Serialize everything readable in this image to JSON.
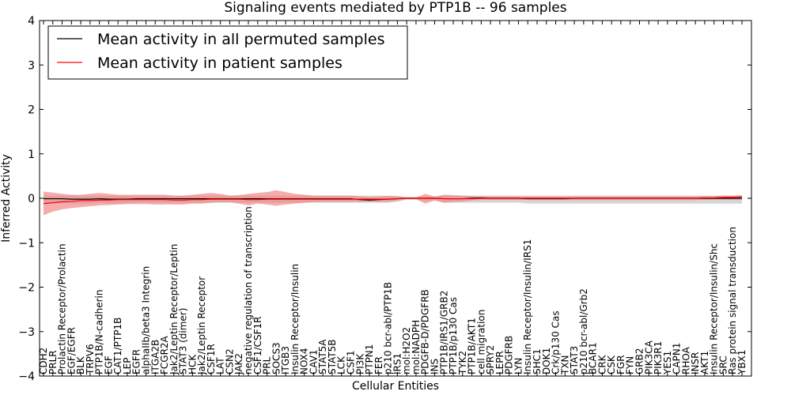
{
  "chart_data": {
    "type": "line",
    "title": "Signaling events mediated by PTP1B -- 96 samples",
    "xlabel": "Cellular Entities",
    "ylabel": "Inferred Activity",
    "ylim": [
      -4,
      4
    ],
    "yticks": [
      4,
      3,
      2,
      1,
      0,
      -1,
      -2,
      -3,
      -4
    ],
    "ytick_labels": [
      "4",
      "3",
      "2",
      "1",
      "0",
      "−1",
      "−2",
      "−3",
      "−4"
    ],
    "legend": {
      "placement": "top-left",
      "entries": [
        {
          "label": "Mean activity in all permuted samples",
          "color": "#000000"
        },
        {
          "label": "Mean activity in patient samples",
          "color": "#ff0000"
        }
      ]
    },
    "categories": [
      "CDH2",
      "PRLR",
      "Prolactin Receptor/Prolactin",
      "EGF/EGFR",
      "BLK",
      "TRPV6",
      "PTP1B/N-cadherin",
      "EGF",
      "CAT1/PTP1B",
      "LEP",
      "EGFR",
      "alphaIIb/beta3 Integrin",
      "ITGA2B",
      "FCGR2A",
      "Jak2/Leptin Receptor/Leptin",
      "STAT3 (dimer)",
      "HCK",
      "Jak2/Leptin Receptor",
      "CSF1R",
      "LAT",
      "CSN2",
      "JAK2",
      "negative regulation of transcription",
      "CSF1/CSF1R",
      "PRL",
      "SOCS3",
      "ITGB3",
      "Insulin Receptor/Insulin",
      "NOX4",
      "CAV1",
      "STAT5A",
      "STAT5B",
      "LCK",
      "CSF1",
      "PI3K",
      "PTPN1",
      "FER",
      "p210 bcr-abl/PTP1B",
      "IRS1",
      "mol:H2O2",
      "mol:NADPH",
      "PDGFB-D/PDGFRB",
      "INS",
      "PTP1B/IRS1/GRB2",
      "PTP1B/p130 Cas",
      "TYK2",
      "PTP1B/AKT1",
      "cell migration",
      "SPRY2",
      "LEPR",
      "PDGFRB",
      "LYN",
      "Insulin Receptor/Insulin/IRS1",
      "SHC1",
      "DOK1",
      "Crk/p130 Cas",
      "TXN",
      "STAT3",
      "p210 bcr-abl/Grb2",
      "BCAR1",
      "CRK",
      "CSK",
      "FGR",
      "FYN",
      "GRB2",
      "PIK3CA",
      "PIK3R1",
      "YES1",
      "CAPN1",
      "RHOA",
      "INSR",
      "AKT1",
      "Insulin Receptor/Insulin/Shc",
      "SRC",
      "Ras protein signal transduction",
      "YBX1"
    ],
    "series": [
      {
        "name": "Mean activity in all permuted samples",
        "color": "#000000",
        "values": [
          -0.01,
          -0.01,
          -0.01,
          -0.02,
          -0.02,
          -0.02,
          -0.01,
          -0.02,
          -0.02,
          -0.02,
          -0.01,
          -0.01,
          -0.01,
          -0.01,
          -0.01,
          -0.01,
          -0.01,
          -0.01,
          -0.01,
          -0.01,
          -0.01,
          -0.01,
          -0.01,
          -0.01,
          -0.01,
          -0.01,
          -0.01,
          -0.01,
          -0.01,
          -0.01,
          -0.01,
          -0.01,
          -0.01,
          -0.01,
          -0.03,
          -0.04,
          -0.03,
          -0.02,
          -0.01,
          0.0,
          0.0,
          0.0,
          0.0,
          -0.01,
          -0.01,
          -0.01,
          0.0,
          0.01,
          0.0,
          0.0,
          0.0,
          0.0,
          -0.01,
          -0.01,
          -0.01,
          -0.01,
          -0.01,
          0.0,
          0.0,
          0.0,
          0.0,
          0.0,
          0.0,
          0.0,
          0.0,
          0.0,
          0.0,
          0.0,
          0.0,
          0.0,
          0.0,
          0.0,
          0.0,
          0.0,
          0.0,
          0.0
        ],
        "band_low": [
          -0.1,
          -0.1,
          -0.1,
          -0.12,
          -0.12,
          -0.12,
          -0.1,
          -0.12,
          -0.12,
          -0.12,
          -0.1,
          -0.1,
          -0.1,
          -0.1,
          -0.1,
          -0.1,
          -0.1,
          -0.1,
          -0.1,
          -0.1,
          -0.1,
          -0.1,
          -0.1,
          -0.1,
          -0.1,
          -0.1,
          -0.1,
          -0.1,
          -0.1,
          -0.1,
          -0.1,
          -0.1,
          -0.1,
          -0.1,
          -0.1,
          -0.1,
          -0.1,
          -0.1,
          -0.08,
          -0.03,
          -0.03,
          -0.06,
          -0.05,
          -0.1,
          -0.1,
          -0.1,
          -0.1,
          -0.1,
          -0.1,
          -0.1,
          -0.1,
          -0.1,
          -0.12,
          -0.12,
          -0.12,
          -0.12,
          -0.12,
          -0.12,
          -0.12,
          -0.12,
          -0.12,
          -0.12,
          -0.12,
          -0.12,
          -0.12,
          -0.12,
          -0.12,
          -0.12,
          -0.12,
          -0.12,
          -0.12,
          -0.12,
          -0.12,
          -0.12,
          -0.12,
          -0.12
        ],
        "band_high": [
          0.06,
          0.06,
          0.06,
          0.06,
          0.06,
          0.06,
          0.06,
          0.06,
          0.06,
          0.06,
          0.06,
          0.06,
          0.06,
          0.06,
          0.06,
          0.06,
          0.06,
          0.06,
          0.06,
          0.06,
          0.06,
          0.06,
          0.06,
          0.06,
          0.06,
          0.06,
          0.06,
          0.06,
          0.06,
          0.06,
          0.06,
          0.06,
          0.06,
          0.06,
          0.06,
          0.06,
          0.06,
          0.06,
          0.05,
          0.03,
          0.03,
          0.04,
          0.04,
          0.06,
          0.06,
          0.06,
          0.06,
          0.06,
          0.06,
          0.06,
          0.06,
          0.06,
          0.06,
          0.06,
          0.06,
          0.06,
          0.06,
          0.06,
          0.06,
          0.06,
          0.06,
          0.06,
          0.06,
          0.06,
          0.06,
          0.06,
          0.06,
          0.06,
          0.06,
          0.06,
          0.06,
          0.06,
          0.06,
          0.06,
          0.06,
          0.06
        ]
      },
      {
        "name": "Mean activity in patient samples",
        "color": "#ff0000",
        "values": [
          -0.12,
          -0.1,
          -0.08,
          -0.07,
          -0.05,
          -0.05,
          -0.04,
          -0.04,
          -0.03,
          -0.03,
          -0.03,
          -0.03,
          -0.03,
          -0.03,
          -0.04,
          -0.04,
          -0.03,
          -0.03,
          -0.02,
          -0.02,
          -0.02,
          -0.02,
          -0.03,
          -0.03,
          -0.02,
          -0.02,
          -0.02,
          -0.02,
          -0.02,
          -0.02,
          -0.02,
          -0.02,
          -0.02,
          -0.02,
          -0.02,
          -0.02,
          -0.02,
          -0.02,
          -0.01,
          0.0,
          0.0,
          0.0,
          0.0,
          -0.01,
          -0.01,
          -0.01,
          -0.01,
          0.0,
          0.0,
          0.0,
          0.0,
          0.0,
          0.0,
          0.0,
          0.0,
          0.0,
          0.0,
          0.0,
          0.0,
          0.0,
          0.0,
          0.0,
          0.0,
          0.0,
          0.0,
          0.0,
          0.0,
          0.0,
          0.0,
          0.0,
          0.0,
          0.01,
          0.01,
          0.02,
          0.02,
          0.03
        ],
        "band_low": [
          -0.38,
          -0.3,
          -0.25,
          -0.22,
          -0.2,
          -0.18,
          -0.16,
          -0.15,
          -0.14,
          -0.13,
          -0.13,
          -0.13,
          -0.14,
          -0.14,
          -0.14,
          -0.14,
          -0.12,
          -0.12,
          -0.1,
          -0.09,
          -0.09,
          -0.12,
          -0.16,
          -0.12,
          -0.14,
          -0.17,
          -0.14,
          -0.12,
          -0.1,
          -0.09,
          -0.08,
          -0.08,
          -0.08,
          -0.08,
          -0.08,
          -0.08,
          -0.08,
          -0.08,
          -0.05,
          -0.02,
          -0.02,
          -0.12,
          -0.05,
          -0.1,
          -0.08,
          -0.07,
          -0.05,
          -0.04,
          -0.04,
          -0.04,
          -0.04,
          -0.04,
          -0.04,
          -0.04,
          -0.04,
          -0.04,
          -0.04,
          -0.04,
          -0.04,
          -0.04,
          -0.04,
          -0.04,
          -0.04,
          -0.04,
          -0.04,
          -0.04,
          -0.04,
          -0.04,
          -0.04,
          -0.04,
          -0.04,
          -0.03,
          -0.03,
          -0.03,
          -0.03,
          -0.03
        ],
        "band_high": [
          0.15,
          0.13,
          0.1,
          0.08,
          0.08,
          0.1,
          0.12,
          0.1,
          0.08,
          0.08,
          0.08,
          0.08,
          0.08,
          0.08,
          0.06,
          0.06,
          0.08,
          0.1,
          0.12,
          0.1,
          0.06,
          0.07,
          0.1,
          0.12,
          0.14,
          0.18,
          0.14,
          0.1,
          0.08,
          0.06,
          0.06,
          0.06,
          0.06,
          0.06,
          0.04,
          0.03,
          0.04,
          0.05,
          0.05,
          0.02,
          0.02,
          0.1,
          0.04,
          0.08,
          0.07,
          0.06,
          0.05,
          0.04,
          0.04,
          0.04,
          0.04,
          0.04,
          0.04,
          0.04,
          0.04,
          0.04,
          0.04,
          0.04,
          0.04,
          0.04,
          0.04,
          0.04,
          0.04,
          0.04,
          0.04,
          0.04,
          0.04,
          0.04,
          0.04,
          0.04,
          0.04,
          0.05,
          0.05,
          0.06,
          0.06,
          0.07
        ]
      }
    ]
  }
}
